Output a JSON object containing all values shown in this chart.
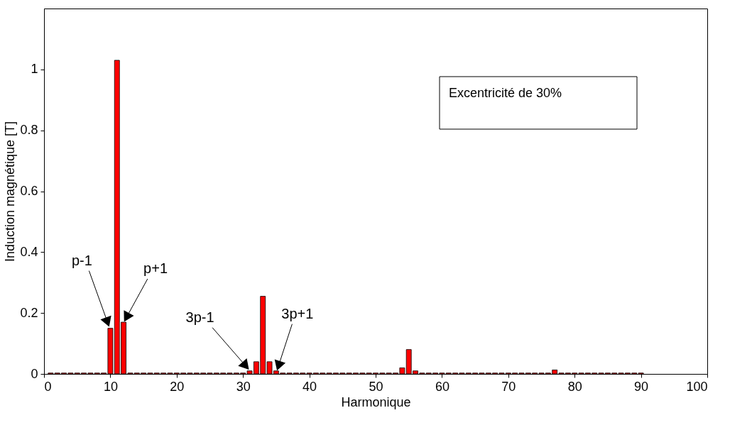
{
  "chart_data": {
    "type": "bar",
    "xlabel": "Harmonique",
    "ylabel": "Induction magnétique [T]",
    "x": [
      1,
      2,
      3,
      4,
      5,
      6,
      7,
      8,
      9,
      10,
      11,
      12,
      13,
      14,
      15,
      16,
      17,
      18,
      19,
      20,
      21,
      22,
      23,
      24,
      25,
      26,
      27,
      28,
      29,
      30,
      31,
      32,
      33,
      34,
      35,
      36,
      37,
      38,
      39,
      40,
      41,
      42,
      43,
      44,
      45,
      46,
      47,
      48,
      49,
      50,
      51,
      52,
      53,
      54,
      55,
      56,
      57,
      58,
      59,
      60,
      61,
      62,
      63,
      64,
      65,
      66,
      67,
      68,
      69,
      70,
      71,
      72,
      73,
      74,
      75,
      76,
      77,
      78,
      79,
      80,
      81,
      82,
      83,
      84,
      85,
      86,
      87,
      88,
      89,
      90
    ],
    "values": [
      0.003,
      0.003,
      0.003,
      0.003,
      0.003,
      0.003,
      0.003,
      0.003,
      0.003,
      0.15,
      1.03,
      0.17,
      0.003,
      0.003,
      0.003,
      0.003,
      0.003,
      0.003,
      0.003,
      0.003,
      0.003,
      0.003,
      0.003,
      0.003,
      0.003,
      0.003,
      0.003,
      0.003,
      0.003,
      0.003,
      0.01,
      0.04,
      0.255,
      0.04,
      0.01,
      0.003,
      0.003,
      0.003,
      0.003,
      0.003,
      0.003,
      0.003,
      0.003,
      0.003,
      0.003,
      0.003,
      0.003,
      0.003,
      0.003,
      0.003,
      0.003,
      0.003,
      0.003,
      0.02,
      0.08,
      0.01,
      0.003,
      0.003,
      0.003,
      0.003,
      0.003,
      0.003,
      0.003,
      0.003,
      0.003,
      0.003,
      0.003,
      0.003,
      0.003,
      0.003,
      0.003,
      0.003,
      0.003,
      0.003,
      0.003,
      0.003,
      0.013,
      0.003,
      0.003,
      0.003,
      0.003,
      0.003,
      0.003,
      0.003,
      0.003,
      0.003,
      0.003,
      0.003,
      0.003,
      0.003
    ],
    "color": "#ff0000",
    "xlim": [
      0,
      100
    ],
    "xticks": [
      0,
      10,
      20,
      30,
      40,
      50,
      60,
      70,
      80,
      90,
      100
    ],
    "ylim": [
      0,
      1.2
    ],
    "yticks": [
      0,
      0.2,
      0.4,
      0.6,
      0.8,
      1
    ],
    "grid": false,
    "annotations": [
      {
        "text": "p-1",
        "x": 10,
        "y": 0.15
      },
      {
        "text": "p+1",
        "x": 12,
        "y": 0.17
      },
      {
        "text": "3p-1",
        "x": 31,
        "y": 0.01
      },
      {
        "text": "3p+1",
        "x": 35,
        "y": 0.01
      },
      "Excentricité de 30%"
    ]
  }
}
